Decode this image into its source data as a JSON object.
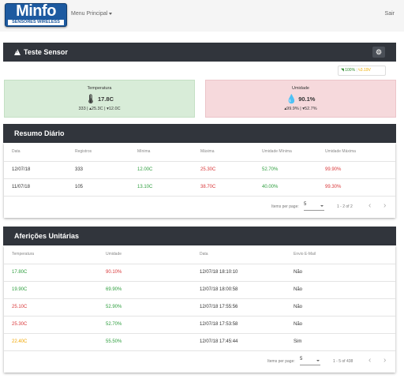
{
  "navbar": {
    "logo_title": "Minfo",
    "logo_subtitle": "SENSORES WIRELESS",
    "menu_label": "Menu Principal",
    "logout_label": "Sair"
  },
  "sensor": {
    "title": "Teste Sensor",
    "gear_icon": "gear-icon"
  },
  "status": {
    "wifi_icon": "wifi-icon",
    "signal": "100%",
    "battery_icon": "bolt-icon",
    "voltage": "3.19V"
  },
  "temp_card": {
    "label": "Temperatura",
    "value": "17.8C",
    "max": "25.3C",
    "min": "12.0C"
  },
  "hum_card": {
    "label": "Umidade",
    "value": "90.1%",
    "max": "99.9%",
    "min": "52.7%"
  },
  "resumo": {
    "title": "Resumo Diário",
    "headers": [
      "Data",
      "Registros",
      "Mínima",
      "Máxima",
      "Umidade Mínima",
      "Umidade Máxima"
    ],
    "rows": [
      [
        "12/07/18",
        "333",
        "12.00C",
        "25.30C",
        "52.70%",
        "99.90%"
      ],
      [
        "11/07/18",
        "105",
        "13.10C",
        "38.70C",
        "40.00%",
        "99.30%"
      ]
    ],
    "paginator": {
      "label": "Items per page:",
      "size": "5",
      "range": "1 - 2 of 2",
      "prev": "‹",
      "next": "›"
    }
  },
  "afericoes": {
    "title": "Aferições Unitárias",
    "headers": [
      "Temperatura",
      "Umidade",
      "Data",
      "Envio E-Mail"
    ],
    "rows": [
      [
        "17.80C",
        "90.10%",
        "12/07/18 18:10:10",
        "Não"
      ],
      [
        "19.90C",
        "69.90%",
        "12/07/18 18:00:58",
        "Não"
      ],
      [
        "25.10C",
        "52.90%",
        "12/07/18 17:55:56",
        "Não"
      ],
      [
        "25.30C",
        "52.70%",
        "12/07/18 17:53:58",
        "Não"
      ],
      [
        "22.40C",
        "55.50%",
        "12/07/18 17:45:44",
        "Sim"
      ]
    ],
    "paginator": {
      "label": "Items per page:",
      "size": "5",
      "range": "1 - 5 of 438",
      "prev": "‹",
      "next": "›"
    }
  }
}
